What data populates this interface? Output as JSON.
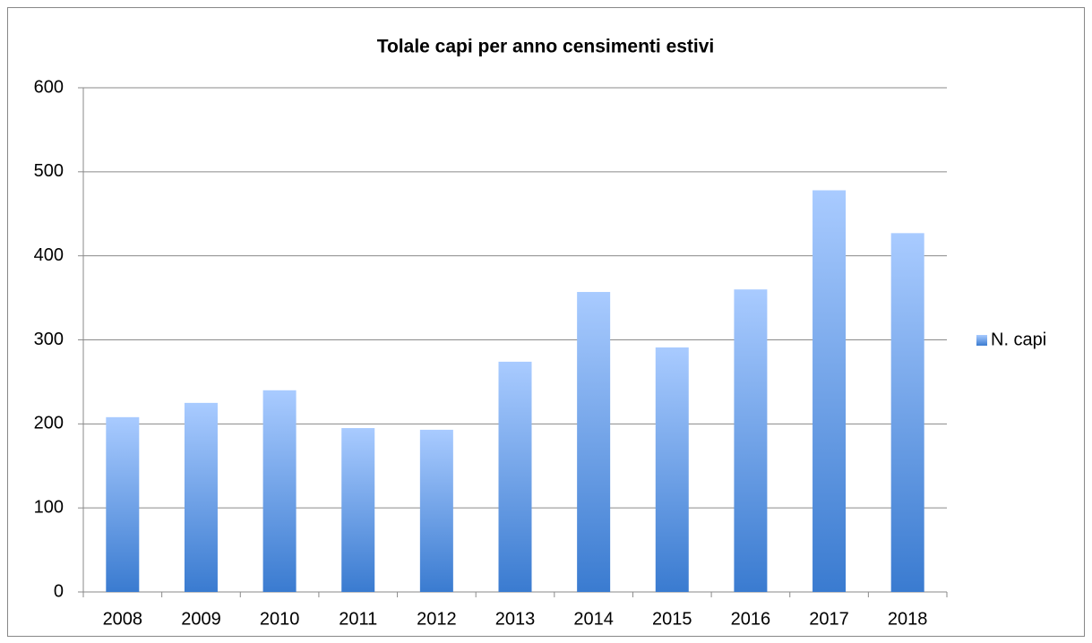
{
  "chart_data": {
    "type": "bar",
    "title": "Tolale capi per anno censimenti estivi",
    "categories": [
      "2008",
      "2009",
      "2010",
      "2011",
      "2012",
      "2013",
      "2014",
      "2015",
      "2016",
      "2017",
      "2018"
    ],
    "series": [
      {
        "name": "N. capi",
        "color": "#3a7bd0",
        "values": [
          208,
          225,
          240,
          195,
          193,
          274,
          357,
          291,
          360,
          478,
          427
        ]
      }
    ],
    "ylim": [
      0,
      600
    ],
    "yticks": [
      0,
      100,
      200,
      300,
      400,
      500,
      600
    ],
    "grid": true,
    "legend": "right"
  }
}
